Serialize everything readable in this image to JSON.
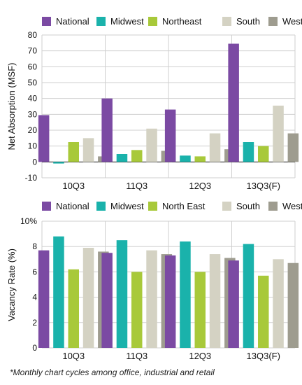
{
  "footnote": "*Monthly chart cycles among office, industrial and retail",
  "colors": {
    "National": "#7b4aa3",
    "Midwest": "#1ab2ab",
    "Northeast": "#a8c93a",
    "South": "#d4d2c3",
    "West": "#9e9c8f"
  },
  "chart_data": [
    {
      "type": "bar",
      "categories": [
        "10Q3",
        "11Q3",
        "12Q3",
        "13Q3(F)"
      ],
      "ylabel": "Net Absorption (MSF)",
      "ylim": [
        -10,
        80
      ],
      "yticks": [
        -10,
        0,
        10,
        20,
        30,
        40,
        50,
        60,
        70,
        80
      ],
      "ytick_labels": [
        "-10",
        "0",
        "10",
        "20",
        "30",
        "40",
        "50",
        "60",
        "70",
        "80"
      ],
      "grid": true,
      "legend_position": "top",
      "series": [
        {
          "name": "National",
          "values": [
            29.5,
            40,
            33,
            74.5
          ]
        },
        {
          "name": "Midwest",
          "values": [
            -1,
            5,
            4,
            12.5
          ]
        },
        {
          "name": "Northeast",
          "values": [
            12.5,
            7.5,
            3.5,
            10
          ]
        },
        {
          "name": "South",
          "values": [
            15,
            21,
            18,
            35.5
          ]
        },
        {
          "name": "West",
          "values": [
            3.5,
            7,
            8,
            18
          ]
        }
      ]
    },
    {
      "type": "bar",
      "categories": [
        "10Q3",
        "11Q3",
        "12Q3",
        "13Q3(F)"
      ],
      "ylabel": "Vacancy Rate (%)",
      "ylim": [
        0,
        10
      ],
      "yticks": [
        0,
        2,
        4,
        6,
        8,
        10
      ],
      "ytick_labels": [
        "0",
        "2",
        "4",
        "6",
        "8",
        "10%"
      ],
      "grid": true,
      "legend_position": "top",
      "series": [
        {
          "name": "National",
          "values": [
            7.7,
            7.5,
            7.3,
            6.9
          ]
        },
        {
          "name": "Midwest",
          "values": [
            8.8,
            8.5,
            8.4,
            8.2
          ]
        },
        {
          "name": "North East",
          "values": [
            6.2,
            6.0,
            6.0,
            5.7
          ]
        },
        {
          "name": "South",
          "values": [
            7.9,
            7.7,
            7.4,
            7.0
          ]
        },
        {
          "name": "West",
          "values": [
            7.6,
            7.4,
            7.1,
            6.7
          ]
        }
      ]
    }
  ]
}
